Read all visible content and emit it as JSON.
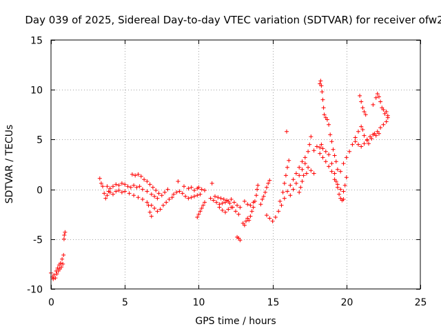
{
  "chart_data": {
    "type": "scatter",
    "title": "Day 039 of 2025, Sidereal Day-to-day VTEC variation (SDTVAR) for receiver ofw2",
    "xlabel": "GPS time / hours",
    "ylabel": "SDTVAR / TECUs",
    "xlim": [
      0,
      25
    ],
    "ylim": [
      -10,
      15
    ],
    "xticks": [
      0,
      5,
      10,
      15,
      20,
      25
    ],
    "yticks": [
      -10,
      -5,
      0,
      5,
      10,
      15
    ],
    "xtick_labels": [
      "0",
      "5",
      "10",
      "15",
      "20",
      "25"
    ],
    "ytick_labels": [
      "-10",
      "-5",
      "0",
      "5",
      "10",
      "15"
    ],
    "grid": true,
    "marker": "+",
    "color": "#ff0000",
    "series": [
      {
        "name": "SDTVAR",
        "points": [
          [
            0.0,
            -8.4
          ],
          [
            0.1,
            -8.8
          ],
          [
            0.15,
            -9.0
          ],
          [
            0.2,
            -8.6
          ],
          [
            0.3,
            -8.9
          ],
          [
            0.35,
            -8.2
          ],
          [
            0.4,
            -8.5
          ],
          [
            0.45,
            -7.9
          ],
          [
            0.5,
            -8.2
          ],
          [
            0.55,
            -7.6
          ],
          [
            0.6,
            -8.0
          ],
          [
            0.65,
            -7.4
          ],
          [
            0.7,
            -7.8
          ],
          [
            0.75,
            -7.0
          ],
          [
            0.8,
            -7.5
          ],
          [
            0.85,
            -6.6
          ],
          [
            0.88,
            -5.0
          ],
          [
            0.9,
            -4.6
          ],
          [
            0.95,
            -4.3
          ],
          [
            3.3,
            1.1
          ],
          [
            3.4,
            0.6
          ],
          [
            3.5,
            0.3
          ],
          [
            3.6,
            -0.4
          ],
          [
            3.7,
            -0.9
          ],
          [
            3.8,
            -0.6
          ],
          [
            3.9,
            -0.2
          ],
          [
            4.0,
            0.1
          ],
          [
            4.2,
            0.3
          ],
          [
            4.4,
            0.5
          ],
          [
            4.6,
            0.4
          ],
          [
            4.8,
            0.6
          ],
          [
            5.0,
            0.5
          ],
          [
            5.2,
            0.3
          ],
          [
            5.4,
            0.2
          ],
          [
            5.6,
            0.4
          ],
          [
            3.8,
            0.3
          ],
          [
            4.0,
            -0.3
          ],
          [
            4.2,
            -0.5
          ],
          [
            4.4,
            -0.2
          ],
          [
            4.6,
            -0.1
          ],
          [
            4.8,
            -0.3
          ],
          [
            5.0,
            -0.2
          ],
          [
            5.3,
            -0.4
          ],
          [
            5.6,
            -0.6
          ],
          [
            5.9,
            -0.8
          ],
          [
            6.2,
            -1.0
          ],
          [
            6.5,
            -1.3
          ],
          [
            6.8,
            -1.6
          ],
          [
            7.0,
            -1.9
          ],
          [
            7.2,
            -2.2
          ],
          [
            7.4,
            -2.0
          ],
          [
            7.6,
            -1.6
          ],
          [
            7.8,
            -1.3
          ],
          [
            8.0,
            -1.0
          ],
          [
            8.2,
            -0.8
          ],
          [
            5.5,
            1.5
          ],
          [
            5.7,
            1.4
          ],
          [
            5.9,
            1.5
          ],
          [
            6.1,
            1.3
          ],
          [
            6.3,
            1.0
          ],
          [
            6.5,
            0.8
          ],
          [
            6.7,
            0.5
          ],
          [
            6.9,
            0.2
          ],
          [
            7.1,
            -0.1
          ],
          [
            7.3,
            -0.4
          ],
          [
            7.5,
            -0.6
          ],
          [
            7.7,
            -0.3
          ],
          [
            7.9,
            0.0
          ],
          [
            5.8,
            0.2
          ],
          [
            6.0,
            0.3
          ],
          [
            6.2,
            0.0
          ],
          [
            6.5,
            -0.2
          ],
          [
            6.8,
            -0.5
          ],
          [
            7.0,
            -0.7
          ],
          [
            7.2,
            -0.9
          ],
          [
            6.6,
            -1.6
          ],
          [
            6.7,
            -2.3
          ],
          [
            6.8,
            -2.7
          ],
          [
            8.3,
            -0.5
          ],
          [
            8.5,
            -0.3
          ],
          [
            8.7,
            -0.2
          ],
          [
            8.9,
            -0.4
          ],
          [
            9.1,
            -0.7
          ],
          [
            9.3,
            -0.9
          ],
          [
            9.5,
            -0.8
          ],
          [
            9.7,
            -0.7
          ],
          [
            9.9,
            -0.6
          ],
          [
            10.1,
            -0.5
          ],
          [
            8.6,
            0.8
          ],
          [
            9.0,
            0.3
          ],
          [
            9.3,
            0.1
          ],
          [
            9.5,
            0.2
          ],
          [
            9.7,
            -0.1
          ],
          [
            9.9,
            0.1
          ],
          [
            10.0,
            0.2
          ],
          [
            10.2,
            0.0
          ],
          [
            10.4,
            -0.1
          ],
          [
            10.9,
            0.6
          ],
          [
            9.9,
            -2.8
          ],
          [
            10.0,
            -2.5
          ],
          [
            10.1,
            -2.2
          ],
          [
            10.2,
            -1.9
          ],
          [
            10.3,
            -1.6
          ],
          [
            10.4,
            -1.3
          ],
          [
            10.8,
            -0.9
          ],
          [
            11.0,
            -1.1
          ],
          [
            11.2,
            -1.3
          ],
          [
            11.4,
            -1.5
          ],
          [
            11.6,
            -1.4
          ],
          [
            11.8,
            -1.3
          ],
          [
            12.0,
            -1.2
          ],
          [
            12.2,
            -1.0
          ],
          [
            12.4,
            -1.3
          ],
          [
            12.6,
            -1.6
          ],
          [
            12.8,
            -1.8
          ],
          [
            11.1,
            -0.7
          ],
          [
            11.3,
            -0.8
          ],
          [
            11.5,
            -0.9
          ],
          [
            11.7,
            -1.0
          ],
          [
            11.9,
            -1.1
          ],
          [
            12.1,
            -1.4
          ],
          [
            12.3,
            -1.8
          ],
          [
            12.5,
            -2.2
          ],
          [
            12.7,
            -2.5
          ],
          [
            11.4,
            -1.8
          ],
          [
            11.6,
            -2.1
          ],
          [
            11.8,
            -2.3
          ],
          [
            12.0,
            -2.0
          ],
          [
            12.2,
            -1.8
          ],
          [
            12.6,
            -4.8
          ],
          [
            12.7,
            -4.9
          ],
          [
            12.8,
            -5.1
          ],
          [
            13.0,
            -3.4
          ],
          [
            13.1,
            -3.6
          ],
          [
            13.2,
            -3.2
          ],
          [
            13.3,
            -2.9
          ],
          [
            13.4,
            -3.1
          ],
          [
            13.5,
            -2.7
          ],
          [
            13.6,
            -2.2
          ],
          [
            13.7,
            -1.8
          ],
          [
            13.8,
            -1.2
          ],
          [
            13.9,
            -0.6
          ],
          [
            13.95,
            0.0
          ],
          [
            14.0,
            0.4
          ],
          [
            13.1,
            -1.2
          ],
          [
            13.3,
            -1.5
          ],
          [
            13.5,
            -1.6
          ],
          [
            13.7,
            -1.3
          ],
          [
            14.2,
            -1.5
          ],
          [
            14.3,
            -1.0
          ],
          [
            14.4,
            -0.7
          ],
          [
            14.5,
            -0.3
          ],
          [
            14.6,
            0.2
          ],
          [
            14.7,
            0.6
          ],
          [
            14.8,
            0.9
          ],
          [
            14.6,
            -2.6
          ],
          [
            14.8,
            -2.9
          ],
          [
            15.0,
            -3.2
          ],
          [
            15.2,
            -2.8
          ],
          [
            15.4,
            -2.2
          ],
          [
            15.6,
            -1.6
          ],
          [
            15.8,
            -0.9
          ],
          [
            16.0,
            -0.2
          ],
          [
            16.2,
            0.4
          ],
          [
            16.4,
            1.0
          ],
          [
            16.6,
            1.6
          ],
          [
            16.8,
            2.2
          ],
          [
            17.0,
            2.8
          ],
          [
            17.2,
            3.2
          ],
          [
            17.4,
            3.8
          ],
          [
            17.5,
            4.5
          ],
          [
            17.6,
            5.3
          ],
          [
            15.5,
            -1.2
          ],
          [
            15.7,
            -0.3
          ],
          [
            15.8,
            0.6
          ],
          [
            15.9,
            1.4
          ],
          [
            16.0,
            2.2
          ],
          [
            16.1,
            2.9
          ],
          [
            15.95,
            5.8
          ],
          [
            16.2,
            -0.6
          ],
          [
            16.4,
            0.0
          ],
          [
            16.6,
            0.6
          ],
          [
            16.8,
            1.4
          ],
          [
            17.0,
            2.0
          ],
          [
            17.2,
            2.6
          ],
          [
            17.4,
            2.2
          ],
          [
            17.6,
            1.9
          ],
          [
            17.8,
            1.6
          ],
          [
            16.8,
            -0.3
          ],
          [
            16.9,
            0.2
          ],
          [
            17.0,
            0.8
          ],
          [
            17.1,
            1.4
          ],
          [
            17.3,
            1.6
          ],
          [
            17.8,
            3.9
          ],
          [
            18.0,
            4.3
          ],
          [
            18.2,
            4.2
          ],
          [
            18.3,
            4.5
          ],
          [
            18.4,
            4.1
          ],
          [
            18.6,
            3.8
          ],
          [
            18.8,
            3.5
          ],
          [
            19.0,
            2.6
          ],
          [
            19.2,
            1.6
          ],
          [
            19.3,
            0.8
          ],
          [
            19.4,
            0.2
          ],
          [
            19.5,
            -0.5
          ],
          [
            19.6,
            -0.9
          ],
          [
            19.7,
            -1.1
          ],
          [
            19.8,
            -1.0
          ],
          [
            18.2,
            10.6
          ],
          [
            18.25,
            10.9
          ],
          [
            18.3,
            10.4
          ],
          [
            18.35,
            9.8
          ],
          [
            18.4,
            9.0
          ],
          [
            18.45,
            8.2
          ],
          [
            18.5,
            7.5
          ],
          [
            18.6,
            7.2
          ],
          [
            18.7,
            7.0
          ],
          [
            18.8,
            6.5
          ],
          [
            18.9,
            5.5
          ],
          [
            19.0,
            4.8
          ],
          [
            19.1,
            4.0
          ],
          [
            19.2,
            3.4
          ],
          [
            19.3,
            2.8
          ],
          [
            19.4,
            2.0
          ],
          [
            18.2,
            3.6
          ],
          [
            18.4,
            3.2
          ],
          [
            18.6,
            2.8
          ],
          [
            18.8,
            2.3
          ],
          [
            19.0,
            1.8
          ],
          [
            19.2,
            1.0
          ],
          [
            19.4,
            0.5
          ],
          [
            19.6,
            0.0
          ],
          [
            19.8,
            -0.2
          ],
          [
            19.9,
            0.4
          ],
          [
            20.0,
            1.2
          ],
          [
            19.6,
            1.8
          ],
          [
            19.8,
            2.6
          ],
          [
            20.0,
            3.2
          ],
          [
            20.2,
            3.8
          ],
          [
            20.4,
            4.5
          ],
          [
            20.6,
            5.2
          ],
          [
            20.8,
            5.8
          ],
          [
            21.0,
            6.3
          ],
          [
            21.1,
            6.0
          ],
          [
            21.2,
            5.4
          ],
          [
            21.4,
            4.9
          ],
          [
            21.5,
            4.6
          ],
          [
            21.7,
            5.1
          ],
          [
            21.9,
            5.6
          ],
          [
            22.1,
            5.8
          ],
          [
            22.3,
            6.2
          ],
          [
            22.5,
            6.5
          ],
          [
            22.7,
            6.8
          ],
          [
            22.8,
            7.2
          ],
          [
            20.9,
            9.4
          ],
          [
            21.0,
            8.8
          ],
          [
            21.1,
            8.2
          ],
          [
            21.2,
            7.8
          ],
          [
            21.3,
            7.5
          ],
          [
            21.8,
            8.5
          ],
          [
            22.0,
            9.2
          ],
          [
            22.1,
            9.6
          ],
          [
            22.2,
            9.3
          ],
          [
            22.3,
            8.8
          ],
          [
            22.4,
            8.2
          ],
          [
            22.5,
            8.0
          ],
          [
            22.6,
            7.6
          ],
          [
            22.7,
            7.8
          ],
          [
            22.8,
            7.4
          ],
          [
            20.6,
            4.8
          ],
          [
            20.8,
            4.5
          ],
          [
            21.0,
            4.3
          ],
          [
            21.2,
            4.6
          ],
          [
            21.4,
            5.0
          ],
          [
            21.6,
            5.3
          ],
          [
            21.8,
            5.5
          ],
          [
            22.0,
            5.4
          ],
          [
            22.2,
            5.6
          ]
        ]
      }
    ]
  }
}
